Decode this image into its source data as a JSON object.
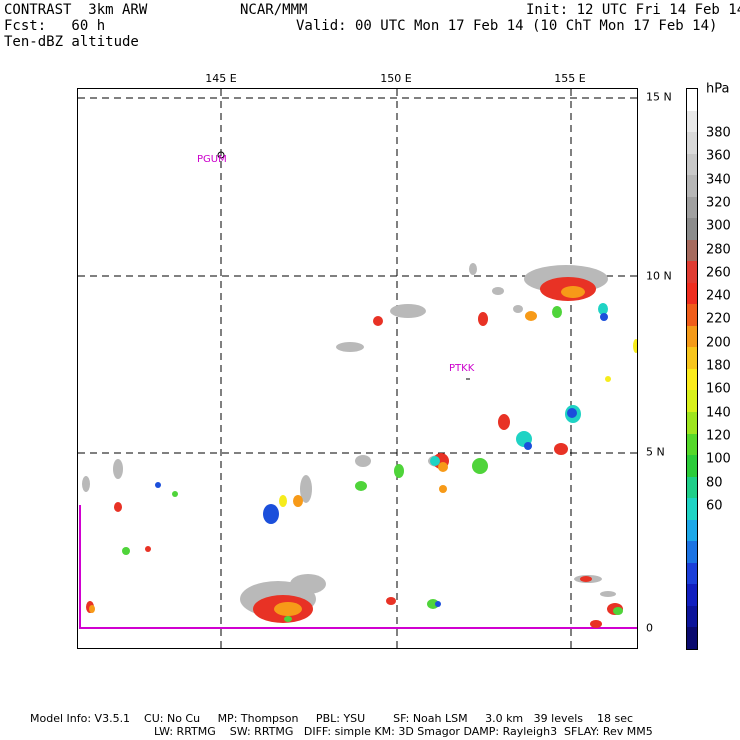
{
  "header": {
    "model": "CONTRAST  3km ARW",
    "org": "NCAR/MMM",
    "init": "Init: 12 UTC Fri 14 Feb 14",
    "fcst": "Fcst:   60 h",
    "valid": "Valid: 00 UTC Mon 17 Feb 14 (10 ChT Mon 17 Feb 14)",
    "field": "Ten-dBZ altitude"
  },
  "map": {
    "lon_labels": [
      "145 E",
      "150 E",
      "155 E"
    ],
    "lat_labels": [
      "15 N",
      "10 N",
      "5 N",
      "0"
    ],
    "stations": [
      "PGUM",
      "PTKK"
    ]
  },
  "colorbar": {
    "unit": "hPa",
    "labels": [
      "380",
      "360",
      "340",
      "320",
      "300",
      "280",
      "260",
      "240",
      "220",
      "200",
      "180",
      "160",
      "140",
      "120",
      "100",
      "80",
      "60"
    ],
    "colors": [
      "#ffffff",
      "#e9e9e9",
      "#d9d9d9",
      "#c8c8c8",
      "#b6b6b6",
      "#a0a0a0",
      "#8c8c8c",
      "#a66b5e",
      "#e03c32",
      "#ef2d1f",
      "#f05d1a",
      "#f49a19",
      "#f7c51c",
      "#fbeb1c",
      "#d8f01c",
      "#9ee51f",
      "#55d82a",
      "#2ccc3a",
      "#1fcf89",
      "#1fd3c4",
      "#1ca8e8",
      "#1b73e3",
      "#1b3fd9",
      "#111fbf",
      "#0c149a",
      "#0a0a6e"
    ]
  },
  "footer": {
    "line1": "Model Info: V3.5.1    CU: No Cu     MP: Thompson     PBL: YSU        SF: Noah LSM     3.0 km   39 levels    18 sec",
    "line2": "LW: RRTMG    SW: RRTMG   DIFF: simple KM: 3D Smagor DAMP: Rayleigh3  SFLAY: Rev MM5"
  }
}
